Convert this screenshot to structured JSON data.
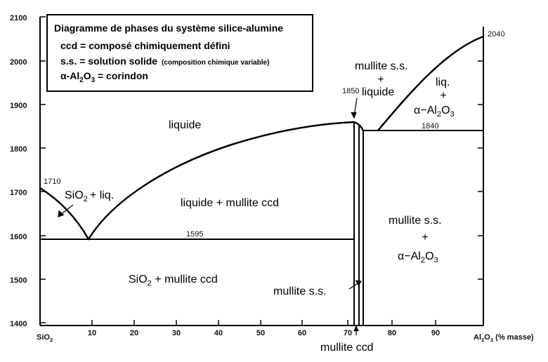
{
  "legend": {
    "title": "Diagramme de phases du système silice-alumine",
    "ccd_def": "ccd = composé chimiquement défini",
    "ss_def": "s.s. = solution solide",
    "ss_note": "(composition chimique variable)",
    "alpha_prefix": "α-Al",
    "alpha_sub1": "2",
    "alpha_mid": "O",
    "alpha_sub2": "3",
    "alpha_suffix": " = corindon"
  },
  "axes": {
    "y_ticks": [
      "2100",
      "2000",
      "1900",
      "1800",
      "1700",
      "1600",
      "1500",
      "1400"
    ],
    "x_ticks": [
      "10",
      "20",
      "30",
      "40",
      "50",
      "60",
      "70",
      "80",
      "90"
    ],
    "x_left_main": "SiO",
    "x_left_sub": "2",
    "x_right_main": "Al",
    "x_right_sub1": "2",
    "x_right_mid": "O",
    "x_right_sub2": "3",
    "x_right_unit": " (% masse)"
  },
  "temperatures": {
    "t1710": "1710",
    "t1595": "1595",
    "t1850": "1850",
    "t1840": "1840",
    "t2040": "2040"
  },
  "regions": {
    "liquide": "liquide",
    "sio2_liq_main": "SiO",
    "sio2_liq_sub": "2",
    "sio2_liq_rest": "+ liq.",
    "liq_mullite": "liquide + mullite ccd",
    "sio2_mullite_main": "SiO",
    "sio2_mullite_sub": "2",
    "sio2_mullite_rest": " + mullite ccd",
    "mullite_ss_liq_1": "mullite s.s.",
    "mullite_ss_liq_plus": "+",
    "mullite_ss_liq_2": "liquide",
    "liq_alpha_1": "liq.",
    "liq_alpha_plus": "+",
    "liq_alpha_prefix": "α−Al",
    "liq_alpha_sub1": "2",
    "liq_alpha_mid": "O",
    "liq_alpha_sub2": "3",
    "mullite_alpha_1": "mullite s.s.",
    "mullite_alpha_plus": "+",
    "mullite_alpha_prefix": "α−Al",
    "mullite_alpha_sub1": "2",
    "mullite_alpha_mid": "O",
    "mullite_alpha_sub2": "3",
    "mullite_ss": "mullite s.s.",
    "mullite_ccd": "mullite ccd"
  }
}
